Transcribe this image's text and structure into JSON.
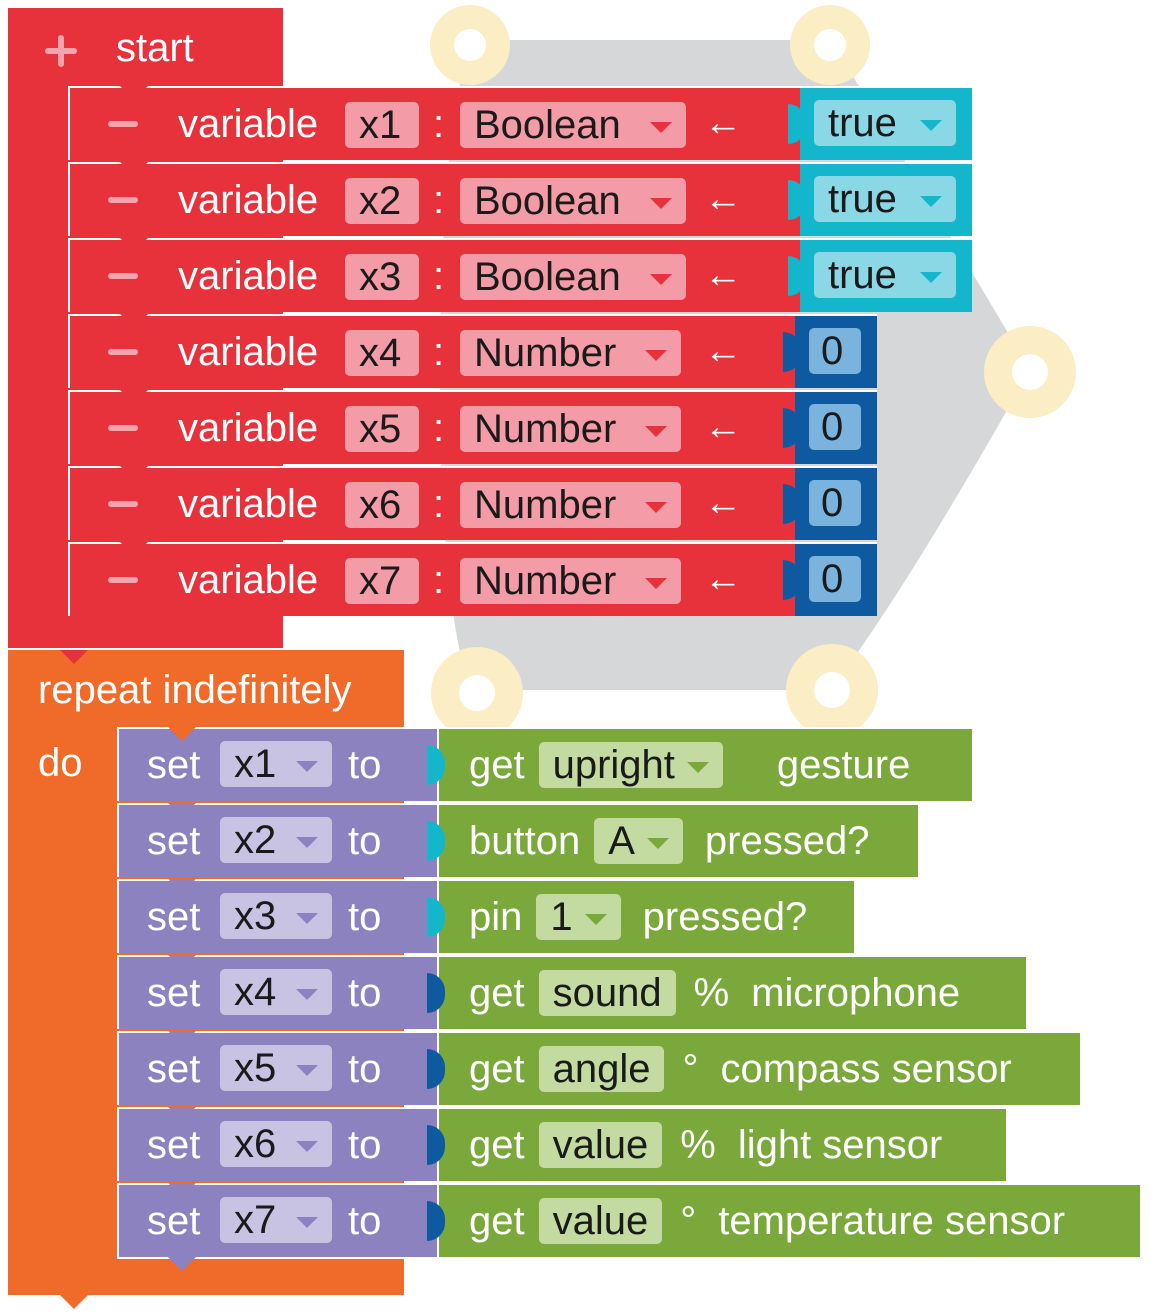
{
  "colors": {
    "start_red": "#e8323b",
    "field_pink": "#f39ba6",
    "bool_teal": "#14b6cc",
    "bool_field": "#8ad8e6",
    "num_blue": "#0e5aa0",
    "num_field": "#7ab3de",
    "loop_orange": "#f06a2a",
    "set_purple": "#8c82c0",
    "set_field": "#c9c3e3",
    "sensor_green": "#7aa83a",
    "sensor_field": "#c3dba0",
    "board_grey": "#d6d7d9",
    "board_pad": "#fbeec4"
  },
  "start": {
    "icon": "plus-icon",
    "label": "start"
  },
  "declarations": [
    {
      "keyword": "variable",
      "name": "x1",
      "colon": ":",
      "type": "Boolean",
      "arrow": "←",
      "value": "true",
      "kind": "bool"
    },
    {
      "keyword": "variable",
      "name": "x2",
      "colon": ":",
      "type": "Boolean",
      "arrow": "←",
      "value": "true",
      "kind": "bool"
    },
    {
      "keyword": "variable",
      "name": "x3",
      "colon": ":",
      "type": "Boolean",
      "arrow": "←",
      "value": "true",
      "kind": "bool"
    },
    {
      "keyword": "variable",
      "name": "x4",
      "colon": ":",
      "type": "Number",
      "arrow": "←",
      "value": "0",
      "kind": "num"
    },
    {
      "keyword": "variable",
      "name": "x5",
      "colon": ":",
      "type": "Number",
      "arrow": "←",
      "value": "0",
      "kind": "num"
    },
    {
      "keyword": "variable",
      "name": "x6",
      "colon": ":",
      "type": "Number",
      "arrow": "←",
      "value": "0",
      "kind": "num"
    },
    {
      "keyword": "variable",
      "name": "x7",
      "colon": ":",
      "type": "Number",
      "arrow": "←",
      "value": "0",
      "kind": "num"
    }
  ],
  "loop": {
    "label": "repeat indefinitely",
    "do_label": "do"
  },
  "assignments": [
    {
      "set": "set",
      "var": "x1",
      "to": "to",
      "sensor": {
        "pre": "get",
        "field": "upright",
        "dropdown": true,
        "post": "gesture",
        "unit": ""
      }
    },
    {
      "set": "set",
      "var": "x2",
      "to": "to",
      "sensor": {
        "pre": "button",
        "field": "A",
        "dropdown": true,
        "post": "pressed?",
        "unit": ""
      }
    },
    {
      "set": "set",
      "var": "x3",
      "to": "to",
      "sensor": {
        "pre": "pin",
        "field": "1",
        "dropdown": true,
        "post": "pressed?",
        "unit": ""
      }
    },
    {
      "set": "set",
      "var": "x4",
      "to": "to",
      "sensor": {
        "pre": "get",
        "field": "sound",
        "dropdown": false,
        "unit": "%",
        "post": "microphone"
      }
    },
    {
      "set": "set",
      "var": "x5",
      "to": "to",
      "sensor": {
        "pre": "get",
        "field": "angle",
        "dropdown": false,
        "unit": "°",
        "post": "compass sensor"
      }
    },
    {
      "set": "set",
      "var": "x6",
      "to": "to",
      "sensor": {
        "pre": "get",
        "field": "value",
        "dropdown": false,
        "unit": "%",
        "post": "light sensor"
      }
    },
    {
      "set": "set",
      "var": "x7",
      "to": "to",
      "sensor": {
        "pre": "get",
        "field": "value",
        "dropdown": false,
        "unit": "°",
        "post": "temperature sensor"
      }
    }
  ]
}
